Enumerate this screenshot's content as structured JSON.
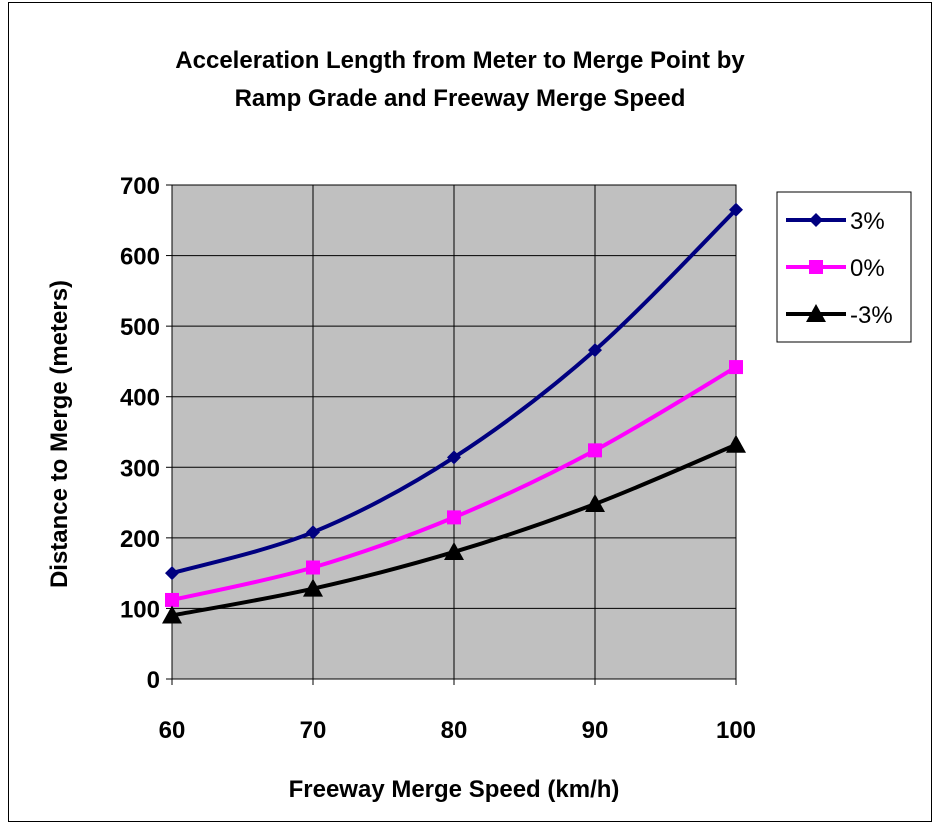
{
  "chart_data": {
    "type": "line",
    "title_lines": [
      "Acceleration Length from Meter to Merge Point by",
      "Ramp Grade and Freeway Merge Speed"
    ],
    "xlabel": "Freeway Merge Speed (km/h)",
    "ylabel": "Distance to Merge (meters)",
    "x": [
      60,
      70,
      80,
      90,
      100
    ],
    "x_ticks": [
      "60",
      "70",
      "80",
      "90",
      "100"
    ],
    "y_ticks": [
      "0",
      "100",
      "200",
      "300",
      "400",
      "500",
      "600",
      "700"
    ],
    "xlim": [
      60,
      100
    ],
    "ylim": [
      0,
      700
    ],
    "grid": true,
    "plot_background": "#c0c0c0",
    "legend_position": "right",
    "series": [
      {
        "name": "3%",
        "color": "#000080",
        "marker": "diamond",
        "values": [
          150,
          208,
          314,
          466,
          665
        ]
      },
      {
        "name": "0%",
        "color": "#ff00ff",
        "marker": "square",
        "values": [
          112,
          158,
          229,
          324,
          442
        ]
      },
      {
        "name": "-3%",
        "color": "#000000",
        "marker": "triangle",
        "values": [
          90,
          128,
          180,
          248,
          332
        ]
      }
    ]
  }
}
